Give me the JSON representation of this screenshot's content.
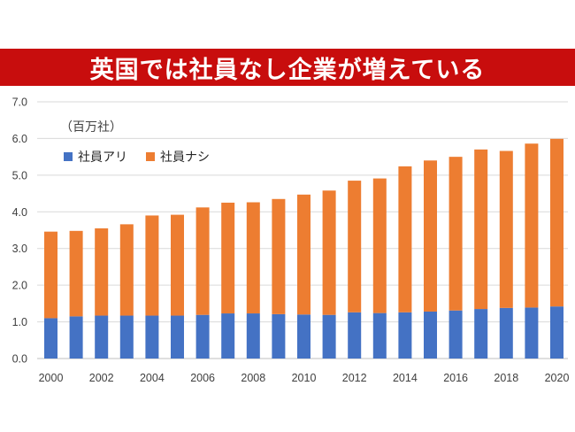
{
  "chart_data": {
    "type": "bar",
    "stacked": true,
    "title": "英国では社員なし企業が増えている",
    "unit_label": "（百万社）",
    "xlabel": "",
    "ylabel": "",
    "ylim": [
      0,
      7
    ],
    "yticks": [
      "0.0",
      "1.0",
      "2.0",
      "3.0",
      "4.0",
      "5.0",
      "6.0",
      "7.0"
    ],
    "categories": [
      "2000",
      "2001",
      "2002",
      "2003",
      "2004",
      "2005",
      "2006",
      "2007",
      "2008",
      "2009",
      "2010",
      "2011",
      "2012",
      "2013",
      "2014",
      "2015",
      "2016",
      "2017",
      "2018",
      "2019",
      "2020"
    ],
    "xtick_labels": [
      "2000",
      "",
      "2002",
      "",
      "2004",
      "",
      "2006",
      "",
      "2008",
      "",
      "2010",
      "",
      "2012",
      "",
      "2014",
      "",
      "2016",
      "",
      "2018",
      "",
      "2020"
    ],
    "grid": true,
    "legend_position": "top-left",
    "series": [
      {
        "name": "社員アリ",
        "color": "#4472c4",
        "values": [
          1.1,
          1.15,
          1.17,
          1.17,
          1.17,
          1.17,
          1.19,
          1.23,
          1.23,
          1.21,
          1.2,
          1.19,
          1.26,
          1.24,
          1.26,
          1.28,
          1.31,
          1.35,
          1.38,
          1.39,
          1.42
        ]
      },
      {
        "name": "社員ナシ",
        "color": "#ed7d31",
        "values": [
          2.36,
          2.33,
          2.38,
          2.49,
          2.73,
          2.75,
          2.93,
          3.02,
          3.03,
          3.14,
          3.27,
          3.39,
          3.59,
          3.67,
          3.98,
          4.12,
          4.19,
          4.35,
          4.28,
          4.47,
          4.57
        ]
      }
    ]
  }
}
